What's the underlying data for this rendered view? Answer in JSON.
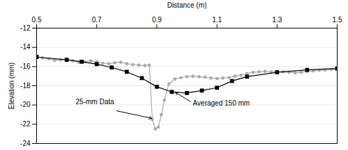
{
  "chart_data": {
    "type": "line",
    "xlabel": "Distance (m)",
    "ylabel": "Elevation (mm)",
    "xlim": [
      0.5,
      1.5
    ],
    "ylim": [
      -24,
      -12
    ],
    "xticks": [
      0.5,
      0.7,
      0.9,
      1.1,
      1.3,
      1.5
    ],
    "yticks": [
      -24,
      -22,
      -20,
      -18,
      -16,
      -14,
      -12
    ],
    "grid": "y",
    "series": [
      {
        "color": "#aaaaaa",
        "marker": "circle",
        "x": [
          0.5,
          0.52,
          0.54,
          0.56,
          0.58,
          0.6,
          0.62,
          0.64,
          0.66,
          0.68,
          0.7,
          0.72,
          0.74,
          0.76,
          0.78,
          0.8,
          0.82,
          0.84,
          0.86,
          0.875,
          0.885,
          0.895,
          0.905,
          0.915,
          0.925,
          0.94,
          0.96,
          0.98,
          1.0,
          1.02,
          1.04,
          1.06,
          1.08,
          1.1,
          1.12,
          1.14,
          1.16,
          1.18,
          1.2,
          1.22,
          1.24,
          1.26,
          1.28,
          1.3,
          1.32,
          1.34,
          1.36,
          1.38,
          1.4,
          1.42,
          1.44,
          1.46,
          1.48,
          1.5
        ],
        "values": [
          -15.0,
          -15.1,
          -15.2,
          -15.35,
          -15.3,
          -15.25,
          -15.4,
          -15.55,
          -15.5,
          -15.4,
          -15.5,
          -15.65,
          -15.7,
          -15.6,
          -15.55,
          -15.7,
          -15.8,
          -15.85,
          -15.9,
          -15.85,
          -21.5,
          -22.5,
          -22.3,
          -21.0,
          -19.5,
          -17.8,
          -17.3,
          -17.15,
          -17.05,
          -17.0,
          -17.05,
          -17.1,
          -17.2,
          -17.25,
          -17.2,
          -17.15,
          -17.0,
          -16.9,
          -16.75,
          -16.6,
          -16.55,
          -16.5,
          -16.55,
          -16.5,
          -16.55,
          -16.6,
          -16.65,
          -16.6,
          -16.5,
          -16.45,
          -16.4,
          -16.35,
          -16.3,
          -16.25
        ]
      },
      {
        "color": "#000000",
        "marker": "square",
        "x": [
          0.5,
          0.6,
          0.65,
          0.7,
          0.75,
          0.8,
          0.85,
          0.9,
          0.95,
          1.0,
          1.05,
          1.1,
          1.15,
          1.2,
          1.3,
          1.4,
          1.5
        ],
        "values": [
          -15.0,
          -15.3,
          -15.5,
          -15.75,
          -16.1,
          -16.55,
          -17.2,
          -18.1,
          -18.65,
          -18.75,
          -18.5,
          -18.2,
          -17.5,
          -17.05,
          -16.6,
          -16.35,
          -16.2
        ]
      }
    ],
    "annotations": [
      {
        "text": "25-mm Data",
        "x": 0.885,
        "y": -21.4,
        "text_x": 0.63,
        "text_y": -19.7
      },
      {
        "text": "Averaged 150 mm",
        "x": 0.96,
        "y": -18.65,
        "text_x": 1.02,
        "text_y": -19.8
      }
    ]
  }
}
